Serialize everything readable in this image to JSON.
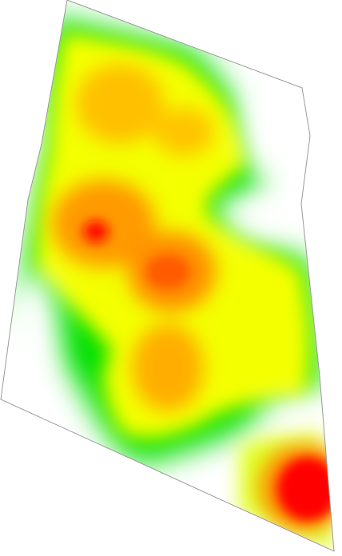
{
  "map": {
    "type": "heatmap",
    "background": "#ffffff",
    "outline_color": "#9a9a9a",
    "palette": {
      "low": "#ffffff",
      "mid_low": "#00e400",
      "mid": "#ffff00",
      "mid_high": "#ffa500",
      "high": "#ff0000"
    }
  }
}
